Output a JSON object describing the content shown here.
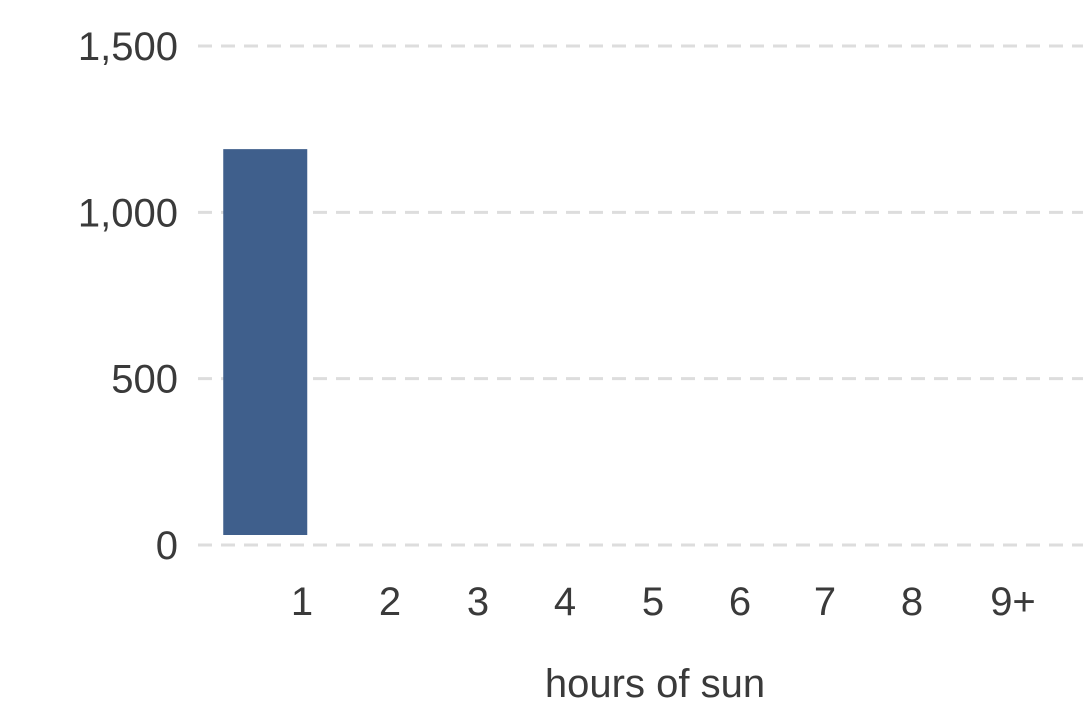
{
  "chart_data": {
    "type": "bar",
    "categories": [
      "1",
      "2",
      "3",
      "4",
      "5",
      "6",
      "7",
      "8",
      "9+"
    ],
    "values": [
      1190,
      0,
      0,
      0,
      0,
      0,
      0,
      0,
      0
    ],
    "title": "",
    "xlabel": "hours of sun",
    "ylabel": "",
    "ylim": [
      0,
      1500
    ],
    "yticks": [
      0,
      500,
      1000,
      1500
    ],
    "ytick_labels": [
      "0",
      "500",
      "1,000",
      "1,500"
    ],
    "grid": true,
    "bar_color": "#3f5f8c"
  }
}
